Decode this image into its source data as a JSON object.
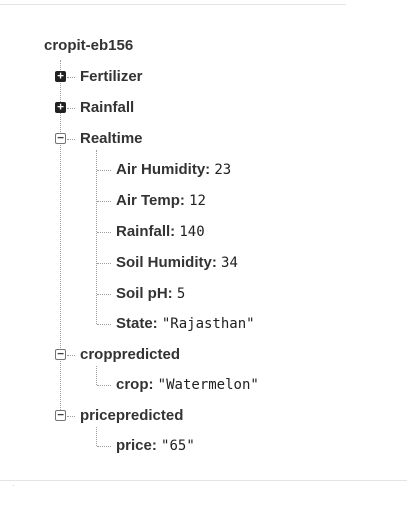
{
  "root": {
    "label": "cropit-eb156"
  },
  "nodes": {
    "fertilizer": {
      "label": "Fertilizer",
      "state": "collapsed"
    },
    "rainfall": {
      "label": "Rainfall",
      "state": "collapsed"
    },
    "realtime": {
      "label": "Realtime",
      "state": "expanded",
      "children": [
        {
          "key": "Air Humidity:",
          "value": "23"
        },
        {
          "key": "Air Temp:",
          "value": "12"
        },
        {
          "key": "Rainfall:",
          "value": "140"
        },
        {
          "key": "Soil Humidity:",
          "value": "34"
        },
        {
          "key": "Soil pH:",
          "value": "5"
        },
        {
          "key": "State:",
          "value": "\"Rajasthan\""
        }
      ]
    },
    "croppredicted": {
      "label": "croppredicted",
      "state": "expanded",
      "children": [
        {
          "key": "crop:",
          "value": "\"Watermelon\""
        }
      ]
    },
    "pricepredicted": {
      "label": "pricepredicted",
      "state": "expanded",
      "children": [
        {
          "key": "price:",
          "value": "\"65\""
        }
      ]
    }
  },
  "toggle_glyphs": {
    "collapsed": "+",
    "expanded": "−"
  }
}
